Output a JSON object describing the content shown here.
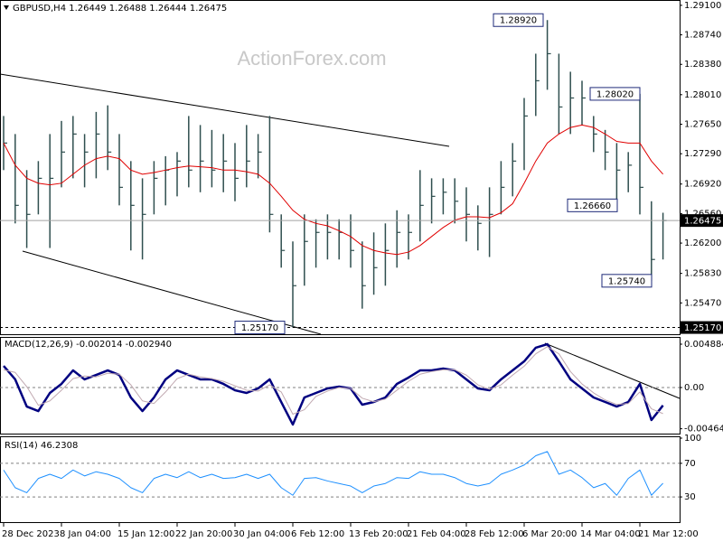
{
  "chart_data": [
    {
      "type": "ohlc",
      "title": "GBPUSD,H4  1.26449 1.26488 1.26444 1.26475",
      "watermark": "ActionForex.com",
      "categories": [
        "28 Dec 2023",
        null,
        null,
        null,
        null,
        "8 Jan 04:00",
        null,
        null,
        null,
        null,
        "15 Jan 12:00",
        null,
        null,
        null,
        null,
        "22 Jan 20:00",
        null,
        null,
        null,
        null,
        "30 Jan 04:00",
        null,
        null,
        null,
        null,
        "6 Feb 12:00",
        null,
        null,
        null,
        null,
        "13 Feb 20:00",
        null,
        null,
        null,
        null,
        "21 Feb 04:00",
        null,
        null,
        null,
        null,
        "28 Feb 12:00",
        null,
        null,
        null,
        null,
        "6 Mar 20:00",
        null,
        null,
        null,
        null,
        "14 Mar 04:00",
        null,
        null,
        null,
        null,
        "21 Mar 12:00",
        null,
        null
      ],
      "high": [
        1.2775,
        1.2753,
        1.2709,
        1.272,
        1.2753,
        1.2769,
        1.2775,
        1.2753,
        1.278,
        1.2788,
        1.2753,
        1.272,
        1.2699,
        1.272,
        1.2726,
        1.2731,
        1.2775,
        1.2764,
        1.2758,
        1.2753,
        1.2742,
        1.2764,
        1.2753,
        1.2775,
        1.2655,
        1.2622,
        1.2655,
        1.2649,
        1.2655,
        1.2649,
        1.2655,
        1.2622,
        1.2633,
        1.2644,
        1.266,
        1.2655,
        1.2709,
        1.2699,
        1.2699,
        1.2699,
        1.2688,
        1.2666,
        1.2688,
        1.272,
        1.2742,
        1.2797,
        1.2851,
        1.2892,
        1.2851,
        1.2829,
        1.2818,
        1.2775,
        1.2758,
        1.2742,
        1.2731,
        1.2802,
        1.2671,
        1.2657
      ],
      "low": [
        1.2709,
        1.2644,
        1.2614,
        1.2655,
        1.2614,
        1.2688,
        1.2699,
        1.2688,
        1.2699,
        1.2709,
        1.2666,
        1.2611,
        1.26,
        1.2655,
        1.2666,
        1.2677,
        1.2688,
        1.2682,
        1.2688,
        1.2682,
        1.2671,
        1.2688,
        1.2699,
        1.2633,
        1.259,
        1.2517,
        1.2568,
        1.259,
        1.26,
        1.26,
        1.259,
        1.254,
        1.2557,
        1.2568,
        1.259,
        1.26,
        1.2622,
        1.2644,
        1.2655,
        1.2644,
        1.2622,
        1.2611,
        1.2603,
        1.2655,
        1.2677,
        1.2709,
        1.2775,
        1.2807,
        1.2753,
        1.2753,
        1.2764,
        1.2731,
        1.2709,
        1.2666,
        1.2682,
        1.2655,
        1.2574,
        1.26
      ],
      "close": [
        1.2742,
        1.2666,
        1.2655,
        1.2699,
        1.2699,
        1.2731,
        1.2753,
        1.2731,
        1.2753,
        1.2731,
        1.2688,
        1.2666,
        1.2655,
        1.2699,
        1.2709,
        1.272,
        1.2709,
        1.272,
        1.2709,
        1.272,
        1.2699,
        1.272,
        1.2731,
        1.2655,
        1.2611,
        1.2568,
        1.2622,
        1.2633,
        1.2633,
        1.2633,
        1.2611,
        1.2568,
        1.259,
        1.2611,
        1.2633,
        1.2633,
        1.2666,
        1.2677,
        1.2682,
        1.2671,
        1.2655,
        1.2644,
        1.2655,
        1.2688,
        1.272,
        1.2775,
        1.2818,
        1.2851,
        1.2786,
        1.2797,
        1.2797,
        1.2753,
        1.2731,
        1.2709,
        1.2715,
        1.2688,
        1.26,
        1.26475
      ],
      "color": "#2f4f4f",
      "ma": {
        "color": "#e00000",
        "values": [
          1.2742,
          1.2715,
          1.2699,
          1.2693,
          1.2691,
          1.2693,
          1.2704,
          1.2715,
          1.2723,
          1.2726,
          1.2723,
          1.2709,
          1.2704,
          1.2706,
          1.2709,
          1.2712,
          1.2714,
          1.2713,
          1.2712,
          1.2709,
          1.2709,
          1.2707,
          1.2704,
          1.2693,
          1.2677,
          1.266,
          1.2649,
          1.2644,
          1.2641,
          1.2635,
          1.2628,
          1.2617,
          1.2611,
          1.2608,
          1.2606,
          1.2609,
          1.2617,
          1.2628,
          1.2639,
          1.2648,
          1.2652,
          1.2652,
          1.2651,
          1.2657,
          1.2668,
          1.2693,
          1.272,
          1.2742,
          1.2753,
          1.2761,
          1.2764,
          1.2761,
          1.2753,
          1.2744,
          1.2742,
          1.2742,
          1.272,
          1.2704
        ]
      },
      "ylim": [
        1.25088,
        1.29165
      ],
      "yticks": [
        {
          "value": 1.291,
          "label": "1.29100"
        },
        {
          "value": 1.2874,
          "label": "1.28740"
        },
        {
          "value": 1.2838,
          "label": "1.28380"
        },
        {
          "value": 1.2801,
          "label": "1.28010"
        },
        {
          "value": 1.2765,
          "label": "1.27650"
        },
        {
          "value": 1.2729,
          "label": "1.27290"
        },
        {
          "value": 1.2692,
          "label": "1.26920"
        },
        {
          "value": 1.2656,
          "label": "1.26560"
        },
        {
          "value": 1.262,
          "label": "1.26200"
        },
        {
          "value": 1.2583,
          "label": "1.25830"
        },
        {
          "value": 1.2547,
          "label": "1.25470"
        }
      ],
      "annotations": [
        {
          "value": 1.2892,
          "label": "1.28920"
        },
        {
          "value": 1.2802,
          "label": "1.28020"
        },
        {
          "value": 1.2666,
          "label": "1.26660"
        },
        {
          "value": 1.2574,
          "label": "1.25740"
        },
        {
          "value": 1.2517,
          "label": "1.25170"
        }
      ],
      "price_markers": [
        {
          "value": 1.26475,
          "label": "1.26475",
          "color": "#a0a0a0",
          "dashed": false
        },
        {
          "value": 1.2517,
          "label": "1.25170",
          "color": "#000000",
          "dashed": true
        }
      ]
    },
    {
      "type": "line",
      "title": "MACD(12,26,9) -0.002014 -0.002940",
      "series": [
        {
          "color": "#000080",
          "width": 2.5,
          "values": [
            0.00244,
            0.00092,
            -0.00214,
            -0.00265,
            -0.00061,
            0.00041,
            0.00193,
            0.00092,
            0.00142,
            0.00193,
            0.00142,
            -0.00112,
            -0.00265,
            -0.00112,
            0.00092,
            0.00193,
            0.00142,
            0.00092,
            0.00092,
            0.00041,
            -0.00031,
            -0.00061,
            -0.0001,
            0.00092,
            -0.00163,
            -0.00417,
            -0.00112,
            -0.00061,
            -0.0001,
            0.0001,
            -0.0001,
            -0.00193,
            -0.00163,
            -0.00112,
            0.00041,
            0.00112,
            0.00193,
            0.00193,
            0.00214,
            0.00193,
            0.00092,
            -0.0001,
            -0.00031,
            0.00092,
            0.00193,
            0.00295,
            0.00448,
            0.004884,
            0.00295,
            0.00092,
            -0.0001,
            -0.00112,
            -0.00163,
            -0.00214,
            -0.00163,
            0.00041,
            -0.00366,
            -0.002014
          ]
        },
        {
          "color": "#c0a8b0",
          "width": 1,
          "values": [
            0.002,
            0.0017,
            0.0001,
            -0.002,
            -0.0015,
            -0.0003,
            0.001,
            0.0013,
            0.0012,
            0.0016,
            0.0015,
            0.0003,
            -0.0015,
            -0.0018,
            -0.0005,
            0.001,
            0.0015,
            0.0012,
            0.001,
            0.0007,
            0.0002,
            -0.0003,
            -0.0004,
            0.0003,
            -0.0005,
            -0.003,
            -0.0025,
            -0.001,
            -0.0004,
            0,
            -0.0001,
            -0.0012,
            -0.0016,
            -0.0013,
            -0.0003,
            0.0007,
            0.0015,
            0.0018,
            0.002,
            0.002,
            0.0014,
            0.0003,
            -0.0002,
            0.0003,
            0.0014,
            0.0024,
            0.0038,
            0.0046,
            0.0038,
            0.0018,
            0.0004,
            -0.0006,
            -0.0014,
            -0.0019,
            -0.0018,
            -0.0005,
            -0.0024,
            -0.00294
          ]
        }
      ],
      "ylim": [
        -0.005189,
        0.005698
      ],
      "yticks": [
        0.004884,
        {
          "value": 0,
          "label": "0.00"
        },
        -0.004645
      ],
      "levels": [
        0
      ]
    },
    {
      "type": "line",
      "title": "RSI(14) 46.2308",
      "series": [
        {
          "color": "#1e90ff",
          "width": 1,
          "values": [
            62,
            41,
            35,
            52,
            57,
            52,
            62,
            55,
            60,
            57,
            52,
            41,
            35,
            52,
            57,
            53,
            60,
            53,
            57,
            52,
            53,
            57,
            52,
            57,
            41,
            32,
            52,
            53,
            49,
            46,
            43,
            35,
            43,
            46,
            53,
            52,
            60,
            57,
            57,
            53,
            46,
            43,
            46,
            57,
            62,
            68,
            79,
            84,
            57,
            62,
            53,
            41,
            46,
            32,
            52,
            62,
            32,
            46.2308
          ]
        }
      ],
      "ylim": [
        0,
        100
      ],
      "yticks": [
        100,
        70,
        30
      ],
      "levels": [
        70,
        30
      ]
    }
  ]
}
